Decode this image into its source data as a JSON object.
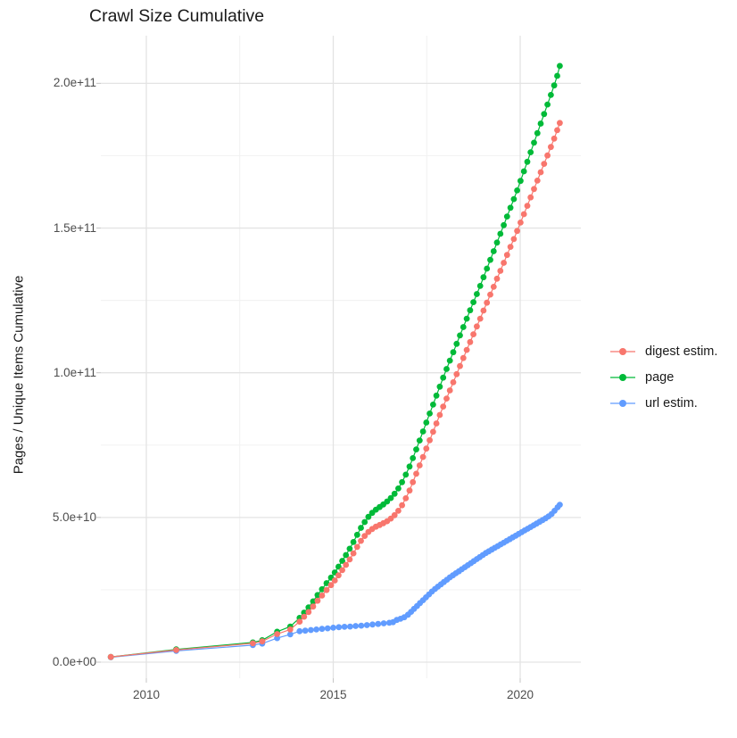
{
  "title": "Crawl Size Cumulative",
  "y_axis": {
    "label": "Pages / Unique Items Cumulative",
    "ticks": [
      "0.0e+00",
      "5.0e+10",
      "1.0e+11",
      "1.5e+11",
      "2.0e+11"
    ],
    "tick_values_e9": [
      0,
      50,
      100,
      150,
      200
    ]
  },
  "x_axis": {
    "ticks": [
      "2010",
      "2015",
      "2020"
    ],
    "tick_values": [
      2010,
      2015,
      2020
    ]
  },
  "legend": {
    "items": [
      {
        "label": "digest estim.",
        "color": "#F8766D"
      },
      {
        "label": "page",
        "color": "#00BA38"
      },
      {
        "label": "url estim.",
        "color": "#619CFF"
      }
    ]
  },
  "chart_data": {
    "type": "scatter",
    "title": "Crawl Size Cumulative",
    "xlabel": "",
    "ylabel": "Pages / Unique Items Cumulative",
    "value_unit": "1e9 items",
    "xlim": [
      2008.78,
      2021.62
    ],
    "ylim_e9": [
      -5.5,
      216.5
    ],
    "x_major_ticks": [
      2010,
      2015,
      2020
    ],
    "x_minor_ticks": [
      2012.5,
      2017.5
    ],
    "y_major_ticks_e9": [
      0,
      50,
      100,
      150,
      200
    ],
    "y_minor_ticks_e9": [
      25,
      75,
      125,
      175
    ],
    "grid": true,
    "legend_position": "right",
    "marker_radius": 3.4,
    "series": [
      {
        "name": "digest estim.",
        "color": "#F8766D",
        "points_year_e9": [
          [
            2009.05,
            1.8
          ],
          [
            2010.8,
            4.2
          ],
          [
            2012.85,
            6.5
          ],
          [
            2013.1,
            7.2
          ],
          [
            2013.5,
            9.7
          ],
          [
            2013.85,
            11.3
          ],
          [
            2014.1,
            14.0
          ],
          [
            2014.22,
            15.7
          ],
          [
            2014.34,
            17.3
          ],
          [
            2014.46,
            19.2
          ],
          [
            2014.58,
            21.2
          ],
          [
            2014.7,
            23.0
          ],
          [
            2014.82,
            24.9
          ],
          [
            2014.94,
            26.6
          ],
          [
            2015.04,
            28.2
          ],
          [
            2015.14,
            30.0
          ],
          [
            2015.24,
            31.8
          ],
          [
            2015.34,
            33.6
          ],
          [
            2015.44,
            35.5
          ],
          [
            2015.54,
            37.6
          ],
          [
            2015.64,
            39.8
          ],
          [
            2015.74,
            41.9
          ],
          [
            2015.84,
            43.6
          ],
          [
            2015.94,
            45.0
          ],
          [
            2016.04,
            46.0
          ],
          [
            2016.14,
            46.8
          ],
          [
            2016.24,
            47.4
          ],
          [
            2016.34,
            48.0
          ],
          [
            2016.44,
            48.7
          ],
          [
            2016.54,
            49.6
          ],
          [
            2016.64,
            50.8
          ],
          [
            2016.74,
            52.3
          ],
          [
            2016.84,
            54.2
          ],
          [
            2016.94,
            56.6
          ],
          [
            2017.04,
            59.3
          ],
          [
            2017.13,
            62.2
          ],
          [
            2017.22,
            65.1
          ],
          [
            2017.31,
            68.0
          ],
          [
            2017.4,
            70.9
          ],
          [
            2017.49,
            73.8
          ],
          [
            2017.58,
            76.7
          ],
          [
            2017.67,
            79.6
          ],
          [
            2017.76,
            82.5
          ],
          [
            2017.85,
            85.4
          ],
          [
            2017.94,
            88.3
          ],
          [
            2018.03,
            91.1
          ],
          [
            2018.12,
            93.9
          ],
          [
            2018.21,
            96.7
          ],
          [
            2018.3,
            99.5
          ],
          [
            2018.39,
            102.3
          ],
          [
            2018.48,
            105.1
          ],
          [
            2018.57,
            107.9
          ],
          [
            2018.66,
            110.6
          ],
          [
            2018.75,
            113.3
          ],
          [
            2018.84,
            116.0
          ],
          [
            2018.93,
            118.7
          ],
          [
            2019.02,
            121.5
          ],
          [
            2019.11,
            124.2
          ],
          [
            2019.2,
            127.0
          ],
          [
            2019.29,
            129.7
          ],
          [
            2019.38,
            132.5
          ],
          [
            2019.47,
            135.2
          ],
          [
            2019.56,
            138.0
          ],
          [
            2019.65,
            140.7
          ],
          [
            2019.74,
            143.5
          ],
          [
            2019.83,
            146.2
          ],
          [
            2019.92,
            149.0
          ],
          [
            2020.01,
            151.9
          ],
          [
            2020.1,
            154.8
          ],
          [
            2020.19,
            157.7
          ],
          [
            2020.28,
            160.6
          ],
          [
            2020.37,
            163.5
          ],
          [
            2020.46,
            166.4
          ],
          [
            2020.55,
            169.3
          ],
          [
            2020.64,
            172.2
          ],
          [
            2020.73,
            175.1
          ],
          [
            2020.82,
            178.0
          ],
          [
            2020.91,
            180.9
          ],
          [
            2020.99,
            183.8
          ],
          [
            2021.06,
            186.3
          ]
        ]
      },
      {
        "name": "page",
        "color": "#00BA38",
        "points_year_e9": [
          [
            2009.05,
            1.8
          ],
          [
            2010.8,
            4.4
          ],
          [
            2012.85,
            6.8
          ],
          [
            2013.1,
            7.6
          ],
          [
            2013.5,
            10.5
          ],
          [
            2013.85,
            12.3
          ],
          [
            2014.1,
            15.3
          ],
          [
            2014.22,
            17.1
          ],
          [
            2014.34,
            18.9
          ],
          [
            2014.46,
            21.0
          ],
          [
            2014.58,
            23.2
          ],
          [
            2014.7,
            25.2
          ],
          [
            2014.82,
            27.3
          ],
          [
            2014.94,
            29.2
          ],
          [
            2015.04,
            31.0
          ],
          [
            2015.14,
            33.0
          ],
          [
            2015.24,
            35.0
          ],
          [
            2015.34,
            37.0
          ],
          [
            2015.44,
            39.2
          ],
          [
            2015.54,
            41.5
          ],
          [
            2015.64,
            44.0
          ],
          [
            2015.74,
            46.4
          ],
          [
            2015.84,
            48.4
          ],
          [
            2015.94,
            50.2
          ],
          [
            2016.04,
            51.6
          ],
          [
            2016.14,
            52.7
          ],
          [
            2016.24,
            53.6
          ],
          [
            2016.34,
            54.5
          ],
          [
            2016.44,
            55.5
          ],
          [
            2016.54,
            56.7
          ],
          [
            2016.64,
            58.2
          ],
          [
            2016.74,
            60.0
          ],
          [
            2016.84,
            62.2
          ],
          [
            2016.94,
            64.8
          ],
          [
            2017.04,
            67.6
          ],
          [
            2017.13,
            70.5
          ],
          [
            2017.22,
            73.5
          ],
          [
            2017.31,
            76.6
          ],
          [
            2017.4,
            79.7
          ],
          [
            2017.49,
            82.8
          ],
          [
            2017.58,
            85.9
          ],
          [
            2017.67,
            89.0
          ],
          [
            2017.76,
            92.1
          ],
          [
            2017.85,
            95.2
          ],
          [
            2017.94,
            98.3
          ],
          [
            2018.03,
            101.3
          ],
          [
            2018.12,
            104.2
          ],
          [
            2018.21,
            107.1
          ],
          [
            2018.3,
            110.0
          ],
          [
            2018.39,
            112.9
          ],
          [
            2018.48,
            115.8
          ],
          [
            2018.57,
            118.7
          ],
          [
            2018.66,
            121.6
          ],
          [
            2018.75,
            124.4
          ],
          [
            2018.84,
            127.2
          ],
          [
            2018.93,
            130.0
          ],
          [
            2019.02,
            133.0
          ],
          [
            2019.11,
            136.0
          ],
          [
            2019.2,
            139.0
          ],
          [
            2019.29,
            142.0
          ],
          [
            2019.38,
            145.0
          ],
          [
            2019.47,
            148.0
          ],
          [
            2019.56,
            151.0
          ],
          [
            2019.65,
            154.0
          ],
          [
            2019.74,
            157.0
          ],
          [
            2019.83,
            160.0
          ],
          [
            2019.92,
            163.0
          ],
          [
            2020.01,
            166.3
          ],
          [
            2020.1,
            169.6
          ],
          [
            2020.19,
            172.9
          ],
          [
            2020.28,
            176.2
          ],
          [
            2020.37,
            179.5
          ],
          [
            2020.46,
            182.8
          ],
          [
            2020.55,
            186.1
          ],
          [
            2020.64,
            189.4
          ],
          [
            2020.73,
            192.7
          ],
          [
            2020.82,
            196.0
          ],
          [
            2020.91,
            199.3
          ],
          [
            2020.99,
            202.6
          ],
          [
            2021.06,
            206.0
          ]
        ]
      },
      {
        "name": "url estim.",
        "color": "#619CFF",
        "points_year_e9": [
          [
            2009.05,
            1.7
          ],
          [
            2010.8,
            3.9
          ],
          [
            2012.85,
            5.9
          ],
          [
            2013.1,
            6.4
          ],
          [
            2013.5,
            8.3
          ],
          [
            2013.85,
            9.6
          ],
          [
            2014.1,
            10.7
          ],
          [
            2014.25,
            10.9
          ],
          [
            2014.4,
            11.1
          ],
          [
            2014.55,
            11.3
          ],
          [
            2014.7,
            11.5
          ],
          [
            2014.85,
            11.7
          ],
          [
            2015.0,
            11.9
          ],
          [
            2015.15,
            12.1
          ],
          [
            2015.3,
            12.2
          ],
          [
            2015.45,
            12.3
          ],
          [
            2015.6,
            12.5
          ],
          [
            2015.75,
            12.6
          ],
          [
            2015.9,
            12.8
          ],
          [
            2016.05,
            13.0
          ],
          [
            2016.2,
            13.2
          ],
          [
            2016.35,
            13.4
          ],
          [
            2016.5,
            13.6
          ],
          [
            2016.6,
            13.8
          ],
          [
            2016.7,
            14.6
          ],
          [
            2016.8,
            15.0
          ],
          [
            2016.9,
            15.5
          ],
          [
            2017.0,
            16.4
          ],
          [
            2017.08,
            17.4
          ],
          [
            2017.16,
            18.4
          ],
          [
            2017.24,
            19.4
          ],
          [
            2017.32,
            20.4
          ],
          [
            2017.4,
            21.4
          ],
          [
            2017.48,
            22.4
          ],
          [
            2017.56,
            23.4
          ],
          [
            2017.64,
            24.4
          ],
          [
            2017.72,
            25.3
          ],
          [
            2017.8,
            26.1
          ],
          [
            2017.88,
            26.9
          ],
          [
            2017.96,
            27.7
          ],
          [
            2018.04,
            28.5
          ],
          [
            2018.12,
            29.3
          ],
          [
            2018.2,
            30.0
          ],
          [
            2018.28,
            30.7
          ],
          [
            2018.36,
            31.4
          ],
          [
            2018.44,
            32.1
          ],
          [
            2018.52,
            32.8
          ],
          [
            2018.6,
            33.5
          ],
          [
            2018.68,
            34.2
          ],
          [
            2018.76,
            34.9
          ],
          [
            2018.84,
            35.6
          ],
          [
            2018.92,
            36.3
          ],
          [
            2019.0,
            37.0
          ],
          [
            2019.08,
            37.7
          ],
          [
            2019.16,
            38.3
          ],
          [
            2019.24,
            38.9
          ],
          [
            2019.32,
            39.5
          ],
          [
            2019.4,
            40.1
          ],
          [
            2019.48,
            40.7
          ],
          [
            2019.56,
            41.3
          ],
          [
            2019.64,
            41.9
          ],
          [
            2019.72,
            42.5
          ],
          [
            2019.8,
            43.1
          ],
          [
            2019.88,
            43.7
          ],
          [
            2019.96,
            44.3
          ],
          [
            2020.04,
            44.9
          ],
          [
            2020.12,
            45.5
          ],
          [
            2020.2,
            46.1
          ],
          [
            2020.28,
            46.7
          ],
          [
            2020.36,
            47.3
          ],
          [
            2020.44,
            47.9
          ],
          [
            2020.52,
            48.5
          ],
          [
            2020.6,
            49.1
          ],
          [
            2020.68,
            49.7
          ],
          [
            2020.76,
            50.4
          ],
          [
            2020.84,
            51.2
          ],
          [
            2020.92,
            52.3
          ],
          [
            2021.0,
            53.5
          ],
          [
            2021.06,
            54.4
          ]
        ]
      }
    ]
  },
  "colors": {
    "background": "#ffffff",
    "grid_major": "#e3e3e3",
    "grid_minor": "#f0f0f0",
    "tick_mark": "#c9c9c9",
    "tick_text": "#4d4d4d",
    "text": "#1a1a1a"
  }
}
